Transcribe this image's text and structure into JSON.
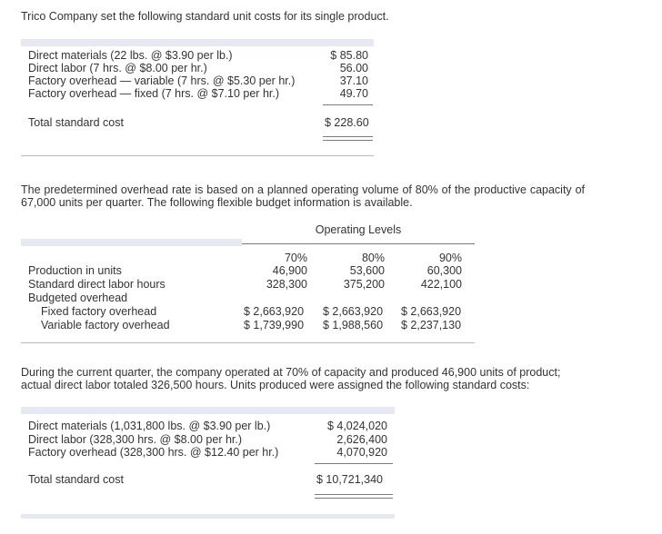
{
  "intro": "Trico Company set the following standard unit costs for its single product.",
  "unit_costs": {
    "rows": [
      {
        "label": "Direct materials (22 lbs. @ $3.90 per lb.)",
        "amount": "$ 85.80"
      },
      {
        "label": "Direct labor (7 hrs. @ $8.00 per hr.)",
        "amount": "56.00"
      },
      {
        "label": "Factory overhead — variable (7 hrs. @ $5.30 per hr.)",
        "amount": "37.10"
      },
      {
        "label": "Factory overhead — fixed (7 hrs. @ $7.10 per hr.)",
        "amount": "49.70"
      }
    ],
    "total_label": "Total standard cost",
    "total_amount": "$ 228.60"
  },
  "overhead_paragraph": "The predetermined overhead rate is based on a planned operating volume of 80% of the productive capacity of 67,000 units per quarter. The following flexible budget information is available.",
  "flex_budget": {
    "header": "Operating Levels",
    "levels": [
      "70%",
      "80%",
      "90%"
    ],
    "rows": [
      {
        "label": "Production in units",
        "values": [
          "46,900",
          "53,600",
          "60,300"
        ]
      },
      {
        "label": "Standard direct labor hours",
        "values": [
          "328,300",
          "375,200",
          "422,100"
        ]
      },
      {
        "label": "Budgeted overhead",
        "values": [
          "",
          "",
          ""
        ]
      },
      {
        "label": "Fixed factory overhead",
        "values": [
          "$ 2,663,920",
          "$ 2,663,920",
          "$ 2,663,920"
        ]
      },
      {
        "label": "Variable factory overhead",
        "values": [
          "$ 1,739,990",
          "$ 1,988,560",
          "$ 2,237,130"
        ]
      }
    ]
  },
  "quarter_paragraph": "During the current quarter, the company operated at 70% of capacity and produced 46,900 units of product; actual direct labor totaled 326,500 hours. Units produced were assigned the following standard costs:",
  "assigned_costs": {
    "rows": [
      {
        "label": "Direct materials (1,031,800 lbs. @ $3.90 per lb.)",
        "amount": "$ 4,024,020"
      },
      {
        "label": "Direct labor (328,300 hrs. @ $8.00 per hr.)",
        "amount": "2,626,400"
      },
      {
        "label": "Factory overhead (328,300 hrs. @ $12.40 per hr.)",
        "amount": "4,070,920"
      }
    ],
    "total_label": "Total standard cost",
    "total_amount": "$ 10,721,340"
  }
}
